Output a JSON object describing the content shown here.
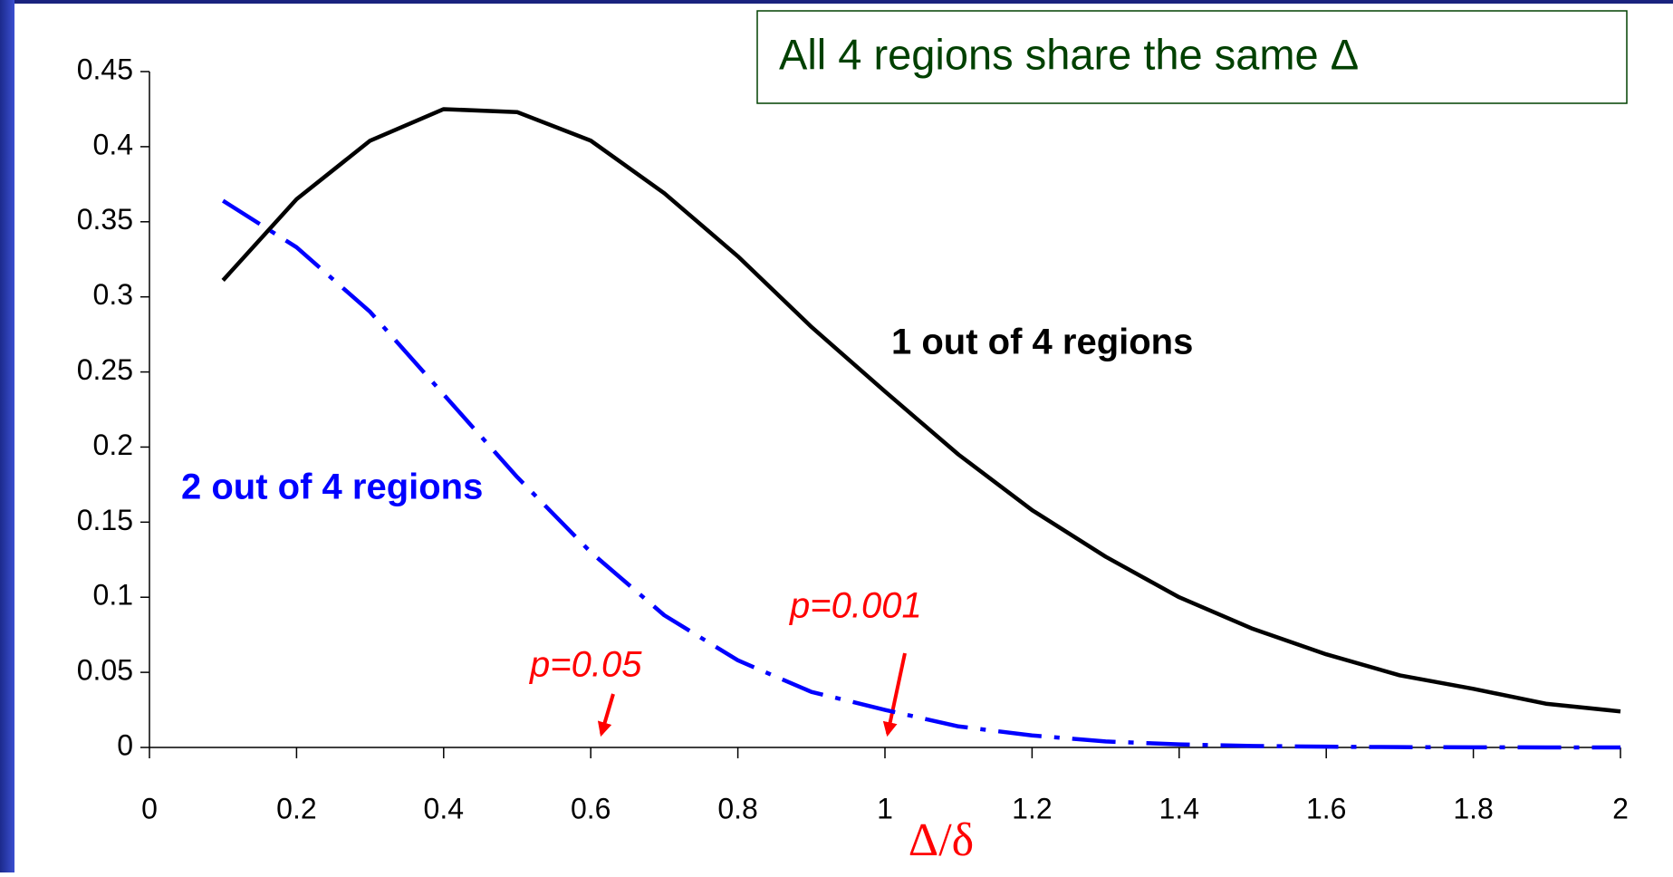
{
  "chart_data": {
    "type": "line",
    "xlabel": "Δ/δ",
    "annotations": [
      "All 4 regions share the same Δ",
      "1 out of 4 regions",
      "2 out of 4 regions",
      "p=0.05",
      "p=0.001"
    ],
    "x": [
      0.1,
      0.2,
      0.3,
      0.4,
      0.5,
      0.6,
      0.7,
      0.8,
      0.9,
      1.0,
      1.1,
      1.2,
      1.3,
      1.4,
      1.5,
      1.6,
      1.7,
      1.8,
      1.9,
      2.0
    ],
    "series": [
      {
        "name": "1 out of 4 regions",
        "color": "#000000",
        "values": [
          0.311,
          0.365,
          0.404,
          0.425,
          0.423,
          0.404,
          0.369,
          0.327,
          0.28,
          0.237,
          0.195,
          0.158,
          0.127,
          0.1,
          0.079,
          0.062,
          0.048,
          0.039,
          0.029,
          0.024
        ]
      },
      {
        "name": "2 out of 4 regions",
        "color": "#0000ff",
        "values": [
          0.364,
          0.333,
          0.29,
          0.235,
          0.18,
          0.13,
          0.088,
          0.058,
          0.037,
          0.025,
          0.014,
          0.008,
          0.004,
          0.002,
          0.001,
          0.0005,
          0.0002,
          0.0001,
          0,
          0
        ]
      }
    ],
    "xlim": [
      0,
      2
    ],
    "xticks": [
      0,
      0.2,
      0.4,
      0.6,
      0.8,
      1,
      1.2,
      1.4,
      1.6,
      1.8,
      2
    ],
    "ylim": [
      0,
      0.45
    ],
    "yticks": [
      0,
      0.05,
      0.1,
      0.15,
      0.2,
      0.25,
      0.3,
      0.35,
      0.4,
      0.45
    ],
    "grid": false
  }
}
